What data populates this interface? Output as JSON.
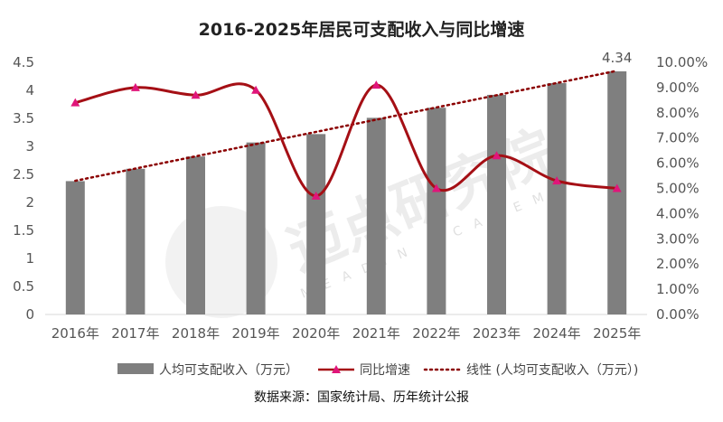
{
  "chart_data": {
    "type": "bar+line",
    "title": "2016-2025年居民可支配收入与同比增速",
    "categories": [
      "2016年",
      "2017年",
      "2018年",
      "2019年",
      "2020年",
      "2021年",
      "2022年",
      "2023年",
      "2024年",
      "2025年"
    ],
    "series": [
      {
        "name": "人均可支配收入（万元）",
        "type": "bar",
        "axis": "left",
        "values": [
          2.38,
          2.6,
          2.82,
          3.07,
          3.22,
          3.51,
          3.69,
          3.92,
          4.13,
          4.34
        ],
        "color": "#7f7f7f"
      },
      {
        "name": "同比增速",
        "type": "line",
        "axis": "right",
        "values": [
          8.4,
          9.0,
          8.7,
          8.9,
          4.7,
          9.1,
          5.0,
          6.3,
          5.3,
          5.0
        ],
        "color": "#a50f15",
        "marker_color": "#e0157a"
      },
      {
        "name": "线性 (人均可支配收入（万元）)",
        "type": "trendline",
        "color": "#8b0000"
      }
    ],
    "data_labels": [
      {
        "category": "2025年",
        "text": "4.34"
      }
    ],
    "yleft": {
      "ylim": [
        0,
        4.5
      ],
      "ticks": [
        "0",
        "0.5",
        "1",
        "1.5",
        "2",
        "2.5",
        "3",
        "3.5",
        "4",
        "4.5"
      ]
    },
    "yright": {
      "ylim": [
        0,
        10
      ],
      "ticks": [
        "0.00%",
        "1.00%",
        "2.00%",
        "3.00%",
        "4.00%",
        "5.00%",
        "6.00%",
        "7.00%",
        "8.00%",
        "9.00%",
        "10.00%"
      ]
    },
    "legend": "bottom",
    "grid": false
  },
  "source": "数据来源：国家统计局、历年统计公报",
  "watermark": "迈点研究院 MEADIN ACADEMY"
}
